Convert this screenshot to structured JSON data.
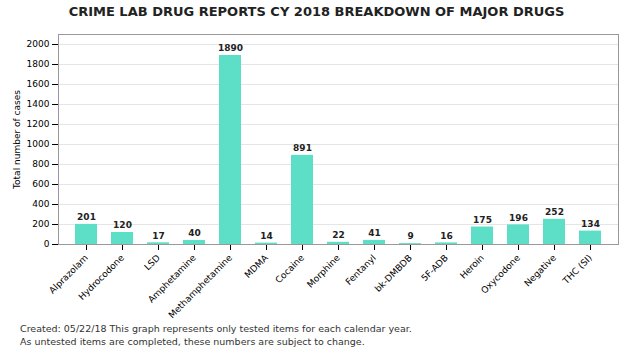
{
  "chart_data": {
    "type": "bar",
    "title": "CRIME LAB DRUG REPORTS CY 2018 BREAKDOWN OF MAJOR DRUGS",
    "ylabel": "Total number of cases",
    "categories": [
      "Alprazolam",
      "Hydrocodone",
      "LSD",
      "Amphetamine",
      "Methamphetamine",
      "MDMA",
      "Cocaine",
      "Morphine",
      "Fentanyl",
      "bk-DMBDB",
      "5F-ADB",
      "Heroin",
      "Oxycodone",
      "Negative",
      "THC (SI)"
    ],
    "values": [
      201,
      120,
      17,
      40,
      1890,
      14,
      891,
      22,
      41,
      9,
      16,
      175,
      196,
      252,
      134
    ],
    "color": "#5DDFC7",
    "ylim": [
      0,
      2100
    ],
    "yticks": [
      0,
      200,
      400,
      600,
      800,
      1000,
      1200,
      1400,
      1600,
      1800,
      2000
    ],
    "grid": true,
    "data_labels": true,
    "annotations": [
      "Created: 05/22/18  This graph represents only tested items for each calendar year.",
      "As untested items are completed, these numbers are subject to change."
    ]
  }
}
